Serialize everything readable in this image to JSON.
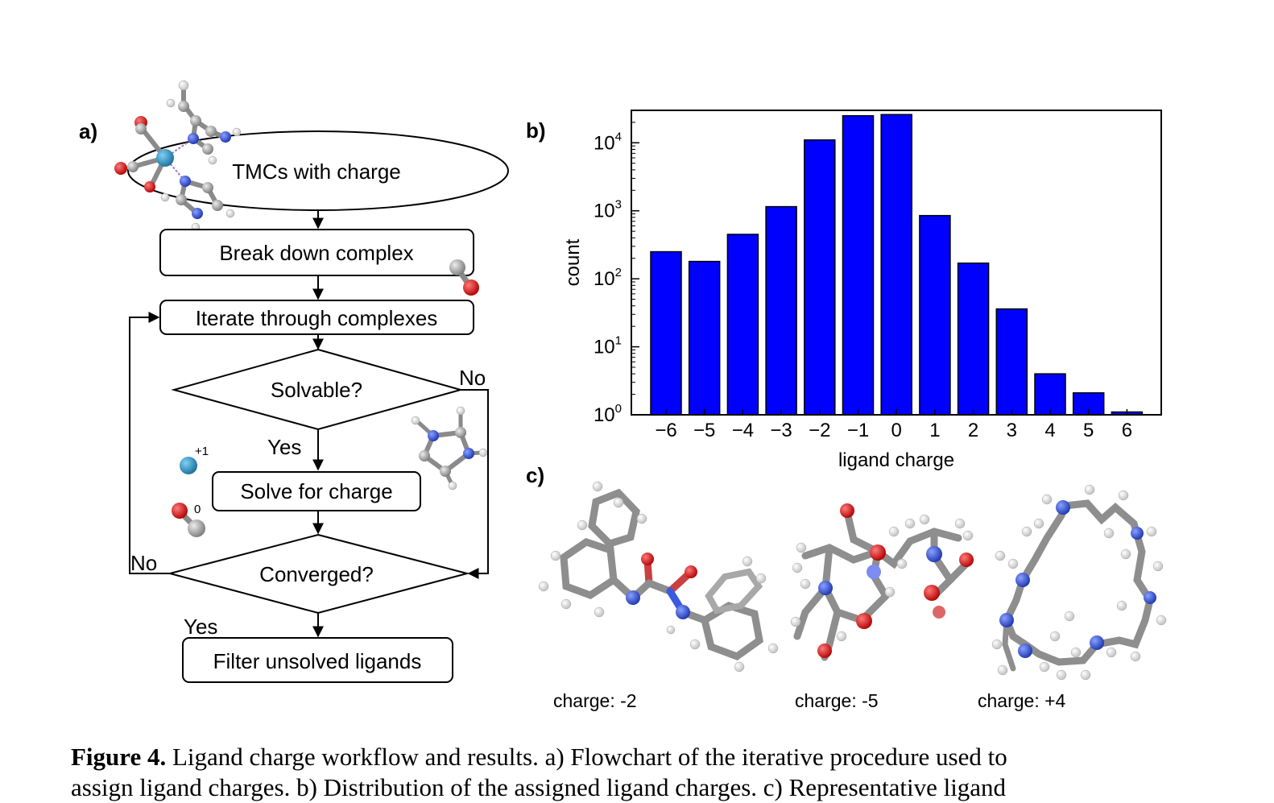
{
  "panels": {
    "a": "a)",
    "b": "b)",
    "c": "c)"
  },
  "flowchart": {
    "start": "TMCs with charge",
    "step1": "Break down complex",
    "step2": "Iterate through complexes",
    "decision1": "Solvable?",
    "decision1_no": "No",
    "decision1_yes": "Yes",
    "step3": "Solve for charge",
    "decision2": "Converged?",
    "decision2_no": "No",
    "decision2_yes": "Yes",
    "end": "Filter unsolved ligands",
    "ion_charge_metal": "+1",
    "ion_charge_co": "0"
  },
  "chart_data": {
    "type": "bar",
    "categories": [
      "−6",
      "−5",
      "−4",
      "−3",
      "−2",
      "−1",
      "0",
      "1",
      "2",
      "3",
      "4",
      "5",
      "6"
    ],
    "values": [
      250,
      180,
      450,
      1150,
      11000,
      25000,
      26000,
      850,
      170,
      36,
      4,
      2.1,
      1.1
    ],
    "xlabel": "ligand charge",
    "ylabel": "count",
    "yscale": "log",
    "ylim": [
      1,
      30000
    ],
    "yticks": [
      {
        "value": 1,
        "base": "10",
        "exp": "0"
      },
      {
        "value": 10,
        "base": "10",
        "exp": "1"
      },
      {
        "value": 100,
        "base": "10",
        "exp": "2"
      },
      {
        "value": 1000,
        "base": "10",
        "exp": "3"
      },
      {
        "value": 10000,
        "base": "10",
        "exp": "4"
      }
    ],
    "bar_color": "#0000ff",
    "grid": false
  },
  "structures": {
    "labels": [
      "charge: -2",
      "charge: -5",
      "charge: +4"
    ]
  },
  "caption": {
    "bold": "Figure 4.",
    "line1": " Ligand charge workflow and results. a) Flowchart of the iterative procedure used to",
    "line2": "assign ligand charges. b) Distribution of the assigned ligand charges. c) Representative ligand"
  },
  "colors": {
    "carbon": "#9a9a9a",
    "nitrogen": "#2b4fe0",
    "oxygen": "#e01010",
    "hydrogen": "#ffffff",
    "metal": "#2b8fbf"
  }
}
